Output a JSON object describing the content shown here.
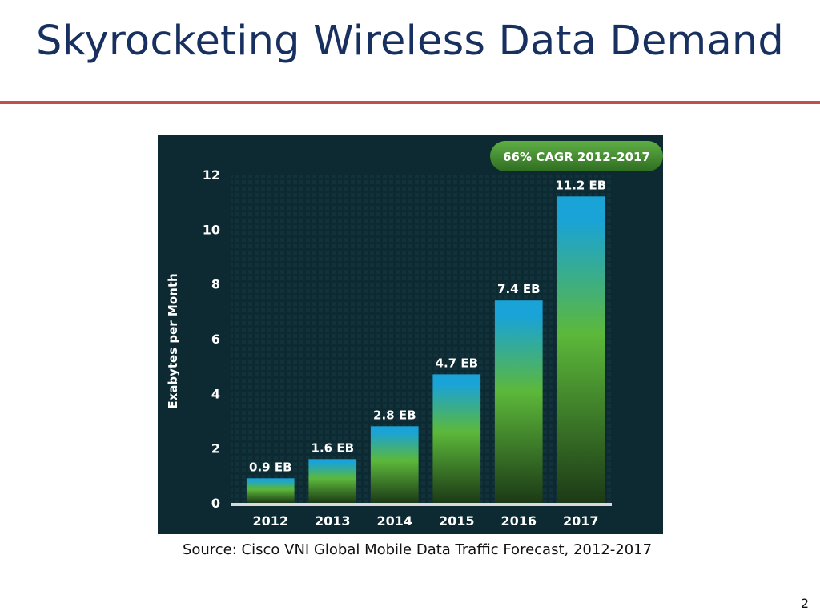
{
  "slide": {
    "title": "Skyrocketing Wireless Data Demand",
    "source": "Source: Cisco VNI Global Mobile Data Traffic Forecast, 2012-2017",
    "page_number": "2"
  },
  "colors": {
    "title": "#17305f",
    "rule": "#c0504d",
    "chart_background": "#0d2a33",
    "bar_top": "#1aa3d6",
    "bar_mid": "#5cb83a",
    "bar_bottom": "#1c3a16",
    "badge": "#3f8e2e"
  },
  "chart_data": {
    "type": "bar",
    "categories": [
      "2012",
      "2013",
      "2014",
      "2015",
      "2016",
      "2017"
    ],
    "values": [
      0.9,
      1.6,
      2.8,
      4.7,
      7.4,
      11.2
    ],
    "data_labels": [
      "0.9 EB",
      "1.6 EB",
      "2.8 EB",
      "4.7 EB",
      "7.4 EB",
      "11.2 EB"
    ],
    "ylabel": "Exabytes per Month",
    "ylim": [
      0,
      12
    ],
    "yticks": [
      "0",
      "2",
      "4",
      "6",
      "8",
      "10",
      "12"
    ],
    "annotation": "66% CAGR 2012–2017",
    "annotation_placement": "top-right",
    "grid": false
  }
}
